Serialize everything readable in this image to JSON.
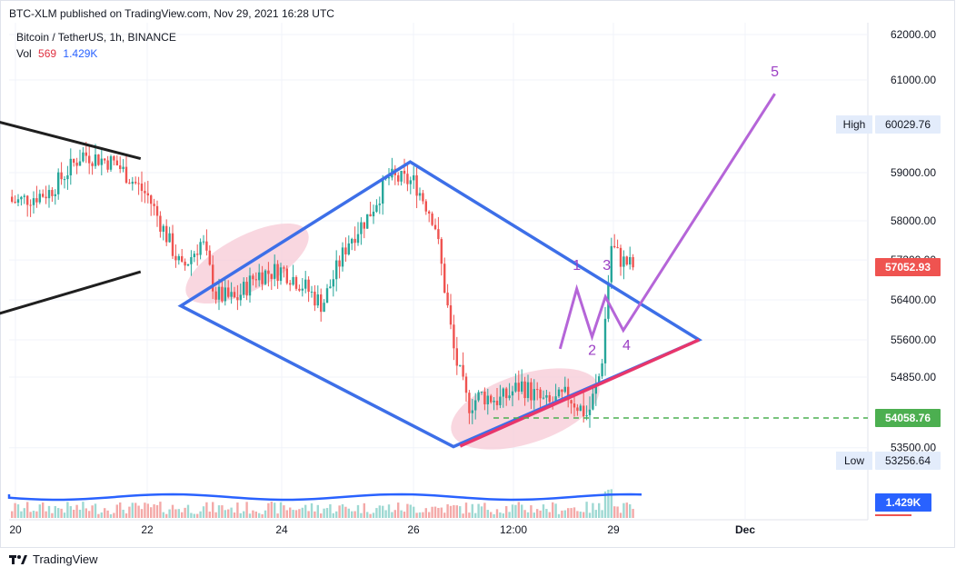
{
  "header": {
    "publish_line": "BTC-XLM published on TradingView.com, Nov 29, 2021 16:28 UTC",
    "symbol_line": "Bitcoin / TetherUS, 1h, BINANCE",
    "vol_label": "Vol",
    "vol_value_1": "569",
    "vol_value_2": "1.429K"
  },
  "footer": {
    "brand": "TradingView"
  },
  "chart_data": {
    "type": "candlestick",
    "symbol": "Bitcoin / TetherUS",
    "interval": "1h",
    "exchange": "BINANCE",
    "y_axis": {
      "ticks": [
        "62000.00",
        "61000.00",
        "59000.00",
        "58000.00",
        "57200.00",
        "56400.00",
        "55600.00",
        "54850.00",
        "53500.00"
      ],
      "tick_values": [
        62000,
        61000,
        59000,
        58000,
        57200,
        56400,
        55600,
        54850,
        53500
      ],
      "side": "right"
    },
    "x_axis": {
      "ticks": [
        "20",
        "22",
        "24",
        "26",
        "12:00",
        "29",
        "Dec"
      ],
      "tick_days": [
        20,
        22,
        24,
        26,
        27.5,
        29,
        31
      ]
    },
    "price_labels": [
      {
        "name": "High",
        "value": "60029.76",
        "style": "high"
      },
      {
        "name": "",
        "value": "57052.93",
        "style": "last"
      },
      {
        "name": "",
        "value": "54058.76",
        "style": "support"
      },
      {
        "name": "Low",
        "value": "53256.64",
        "style": "low"
      },
      {
        "name": "",
        "value": "1.429K",
        "style": "volume"
      }
    ],
    "support_level": 54058.76,
    "wave_labels": [
      "1",
      "2",
      "3",
      "4",
      "5"
    ],
    "wave_path": [
      [
        28.2,
        55420
      ],
      [
        28.45,
        56620
      ],
      [
        28.68,
        55660
      ],
      [
        28.88,
        56460
      ],
      [
        29.15,
        55790
      ],
      [
        31.45,
        60700
      ]
    ],
    "wave_label_points": [
      [
        28.45,
        57000
      ],
      [
        28.68,
        55300
      ],
      [
        28.9,
        57000
      ],
      [
        29.2,
        55400
      ],
      [
        31.45,
        61080
      ]
    ],
    "candles_ohlc_approx": [
      [
        20.0,
        58500,
        58600,
        58200,
        58400
      ],
      [
        20.5,
        58400,
        58700,
        58200,
        58600
      ],
      [
        21.0,
        58600,
        59700,
        58000,
        59400
      ],
      [
        21.5,
        59400,
        59800,
        59000,
        59200
      ],
      [
        22.0,
        59200,
        59400,
        58200,
        58500
      ],
      [
        22.5,
        58500,
        58600,
        56700,
        57000
      ],
      [
        22.8,
        57000,
        58700,
        57000,
        57600
      ],
      [
        23.0,
        57600,
        57700,
        56300,
        56500
      ],
      [
        23.3,
        56500,
        56900,
        55800,
        56400
      ],
      [
        23.6,
        56400,
        57200,
        56000,
        56900
      ],
      [
        24.0,
        56900,
        57500,
        56500,
        57000
      ],
      [
        24.3,
        57000,
        57300,
        56300,
        56700
      ],
      [
        24.6,
        56700,
        57000,
        55900,
        56300
      ],
      [
        25.0,
        56300,
        58000,
        56000,
        57600
      ],
      [
        25.3,
        57600,
        58400,
        57200,
        58100
      ],
      [
        25.6,
        58100,
        59100,
        57900,
        58900
      ],
      [
        26.0,
        58900,
        59300,
        58500,
        58800
      ],
      [
        26.3,
        58800,
        59000,
        57800,
        58000
      ],
      [
        26.6,
        58000,
        58200,
        55000,
        55300
      ],
      [
        26.8,
        55300,
        55400,
        53600,
        54300
      ],
      [
        27.0,
        54300,
        54800,
        53800,
        54500
      ],
      [
        27.3,
        54500,
        54900,
        54000,
        54400
      ],
      [
        27.6,
        54400,
        55000,
        54100,
        54700
      ],
      [
        28.0,
        54700,
        55100,
        54000,
        54300
      ],
      [
        28.3,
        54300,
        54800,
        53900,
        54500
      ],
      [
        28.6,
        54500,
        54700,
        53300,
        54100
      ],
      [
        28.8,
        54100,
        55200,
        54000,
        55000
      ],
      [
        28.95,
        55000,
        58200,
        54900,
        57500
      ],
      [
        29.1,
        57500,
        58100,
        56600,
        57200
      ],
      [
        29.3,
        57200,
        57500,
        56700,
        57052.93
      ]
    ],
    "volume": {
      "label": "Vol",
      "last": "1.429K"
    },
    "drawings": [
      {
        "name": "upper-wedge-line",
        "color": "#1f1f1f",
        "from": [
          19.3,
          57800
        ],
        "to": [
          21.9,
          56600
        ]
      },
      {
        "name": "lower-wedge-line",
        "color": "#1f1f1f",
        "from": [
          19.3,
          55800
        ],
        "to": [
          21.9,
          56700
        ]
      },
      {
        "name": "diamond",
        "color": "#3d6fe8"
      },
      {
        "name": "rising-support",
        "color": "#e8366b"
      },
      {
        "name": "ellipse-highlight-1",
        "color": "#f2b8c6"
      },
      {
        "name": "ellipse-highlight-2",
        "color": "#f2b8c6"
      }
    ],
    "colors": {
      "up": "#26a69a",
      "down": "#ef5350",
      "wave": "#b565d8",
      "support": "#4caf50",
      "price_label_bg": "#e8f0fe",
      "last_bg": "#ef5350"
    },
    "grid": true
  }
}
